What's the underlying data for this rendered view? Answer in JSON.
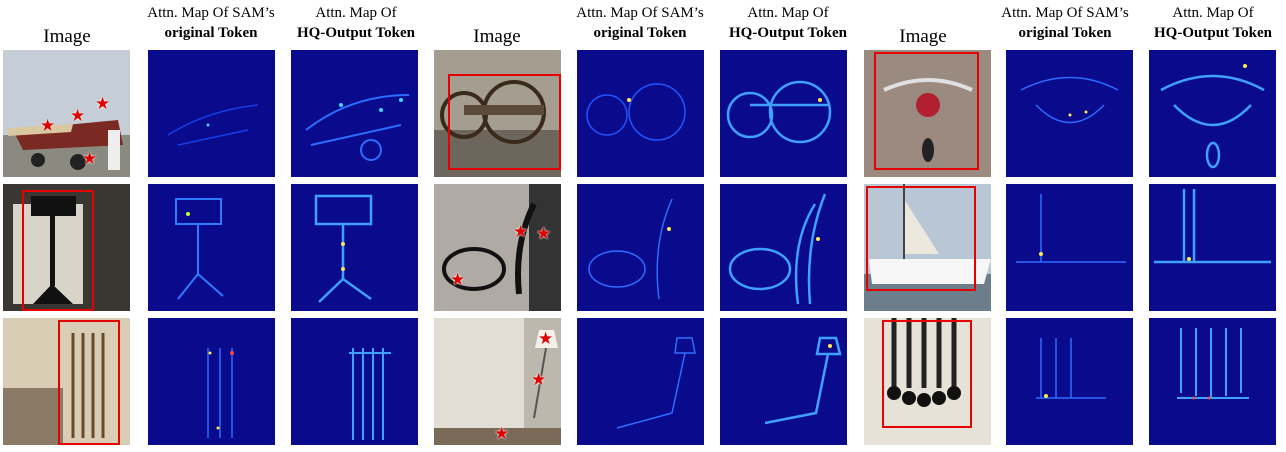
{
  "headers": {
    "image": "Image",
    "sam_line1": "Attn. Map Of SAM’s",
    "sam_line2": "original Token",
    "hq_line1": "Attn. Map Of",
    "hq_line2": "HQ-Output Token"
  },
  "groups": [
    {
      "rows": [
        {
          "photo_desc": "airplane",
          "prompt": "points",
          "stars": 4
        },
        {
          "photo_desc": "music stand",
          "prompt": "box"
        },
        {
          "photo_desc": "cue rack",
          "prompt": "box"
        }
      ]
    },
    {
      "rows": [
        {
          "photo_desc": "cart",
          "prompt": "box"
        },
        {
          "photo_desc": "charger cable",
          "prompt": "points",
          "stars": 3
        },
        {
          "photo_desc": "lamp",
          "prompt": "points",
          "stars": 3
        }
      ]
    },
    {
      "rows": [
        {
          "photo_desc": "necklace",
          "prompt": "box"
        },
        {
          "photo_desc": "sailboat",
          "prompt": "box"
        },
        {
          "photo_desc": "cables",
          "prompt": "box"
        }
      ]
    }
  ],
  "colors": {
    "heatmap_bg": "#0a0a8c",
    "prompt": "#e60000",
    "highlight": "#3fd3ff"
  }
}
